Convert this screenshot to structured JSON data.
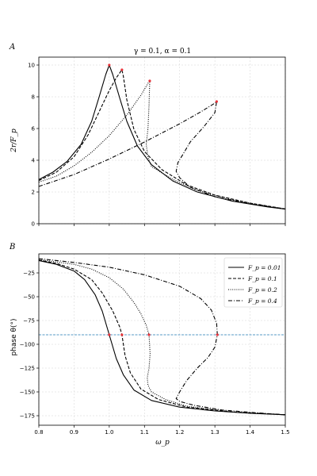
{
  "panel_a": {
    "letter": "A",
    "title": "γ = 0.1, α = 0.1",
    "ylabel": "2r/F_p"
  },
  "panel_b": {
    "letter": "B",
    "ylabel": "phase θ(°)",
    "xlabel": "ω_p"
  },
  "legend": [
    {
      "label": "F_p = 0.01",
      "dash": "solid"
    },
    {
      "label": "F_p = 0.1",
      "dash": "dashed"
    },
    {
      "label": "F_p = 0.2",
      "dash": "dotted"
    },
    {
      "label": "F_p = 0.4",
      "dash": "dashdot"
    }
  ],
  "colors": {
    "curve": "#000000",
    "marker": "#e8333a",
    "hline": "#1f77b4",
    "grid": "#d3d3d3"
  },
  "chart_data": [
    {
      "type": "line",
      "title": "γ = 0.1, α = 0.1",
      "ylabel": "2r/F_p",
      "xlim": [
        0.8,
        1.5
      ],
      "ylim": [
        0,
        10.5
      ],
      "xticks": [
        0.8,
        0.9,
        1.0,
        1.1,
        1.2,
        1.3,
        1.4,
        1.5
      ],
      "yticks": [
        0,
        2,
        4,
        6,
        8,
        10
      ],
      "grid": true,
      "series": [
        {
          "name": "F_p = 0.01",
          "style": "solid",
          "points": [
            [
              0.8,
              2.78
            ],
            [
              0.84,
              3.25
            ],
            [
              0.88,
              3.92
            ],
            [
              0.92,
              5.0
            ],
            [
              0.95,
              6.45
            ],
            [
              0.97,
              7.9
            ],
            [
              0.99,
              9.4
            ],
            [
              1.0,
              10.0
            ],
            [
              1.01,
              9.4
            ],
            [
              1.03,
              7.9
            ],
            [
              1.05,
              6.45
            ],
            [
              1.08,
              4.9
            ],
            [
              1.12,
              3.72
            ],
            [
              1.18,
              2.7
            ],
            [
              1.25,
              2.0
            ],
            [
              1.35,
              1.42
            ],
            [
              1.45,
              1.06
            ],
            [
              1.5,
              0.92
            ]
          ],
          "peak": [
            1.0,
            10.0
          ]
        },
        {
          "name": "F_p = 0.1",
          "style": "dashed",
          "points": [
            [
              0.8,
              2.72
            ],
            [
              0.85,
              3.25
            ],
            [
              0.9,
              4.22
            ],
            [
              0.94,
              5.6
            ],
            [
              0.97,
              7.0
            ],
            [
              1.0,
              8.4
            ],
            [
              1.02,
              9.2
            ],
            [
              1.036,
              9.7
            ],
            [
              1.04,
              9.3
            ],
            [
              1.05,
              7.8
            ],
            [
              1.07,
              5.95
            ],
            [
              1.1,
              4.55
            ],
            [
              1.15,
              3.4
            ],
            [
              1.22,
              2.45
            ],
            [
              1.3,
              1.8
            ],
            [
              1.4,
              1.3
            ],
            [
              1.5,
              0.93
            ]
          ],
          "peak": [
            1.036,
            9.7
          ]
        },
        {
          "name": "F_p = 0.2",
          "style": "dotted",
          "points": [
            [
              0.8,
              2.62
            ],
            [
              0.85,
              3.0
            ],
            [
              0.9,
              3.65
            ],
            [
              0.95,
              4.5
            ],
            [
              1.0,
              5.55
            ],
            [
              1.05,
              6.85
            ],
            [
              1.09,
              8.1
            ],
            [
              1.11,
              8.85
            ],
            [
              1.115,
              9.0
            ],
            [
              1.113,
              7.5
            ],
            [
              1.11,
              6.0
            ],
            [
              1.105,
              5.0
            ],
            [
              1.11,
              4.2
            ],
            [
              1.12,
              3.6
            ],
            [
              1.18,
              2.8
            ],
            [
              1.25,
              2.1
            ],
            [
              1.35,
              1.5
            ],
            [
              1.45,
              1.1
            ],
            [
              1.5,
              0.94
            ]
          ],
          "peak": [
            1.115,
            9.0
          ]
        },
        {
          "name": "F_p = 0.4",
          "style": "dashdot",
          "points": [
            [
              0.8,
              2.35
            ],
            [
              0.9,
              3.1
            ],
            [
              1.0,
              4.08
            ],
            [
              1.1,
              5.15
            ],
            [
              1.2,
              6.3
            ],
            [
              1.26,
              7.05
            ],
            [
              1.3,
              7.6
            ],
            [
              1.305,
              7.7
            ],
            [
              1.3,
              7.0
            ],
            [
              1.27,
              6.15
            ],
            [
              1.23,
              5.15
            ],
            [
              1.21,
              4.4
            ],
            [
              1.195,
              3.85
            ],
            [
              1.19,
              3.3
            ],
            [
              1.2,
              2.9
            ],
            [
              1.23,
              2.3
            ],
            [
              1.3,
              1.7
            ],
            [
              1.4,
              1.25
            ],
            [
              1.5,
              0.92
            ]
          ],
          "peak": [
            1.305,
            7.7
          ]
        }
      ]
    },
    {
      "type": "line",
      "ylabel": "phase θ(°)",
      "xlabel": "ω_p",
      "xlim": [
        0.8,
        1.5
      ],
      "ylim": [
        -185,
        -5
      ],
      "xticks": [
        0.8,
        0.9,
        1.0,
        1.1,
        1.2,
        1.3,
        1.4,
        1.5
      ],
      "yticks": [
        -25,
        -50,
        -75,
        -100,
        -125,
        -150,
        -175
      ],
      "grid": true,
      "legend_position": "top-right",
      "hline": -90,
      "series": [
        {
          "name": "F_p = 0.01",
          "style": "solid",
          "points": [
            [
              0.8,
              -12.0
            ],
            [
              0.85,
              -16.0
            ],
            [
              0.9,
              -23.0
            ],
            [
              0.93,
              -32.0
            ],
            [
              0.96,
              -48.0
            ],
            [
              0.98,
              -65.0
            ],
            [
              1.0,
              -90.0
            ],
            [
              1.02,
              -115.0
            ],
            [
              1.04,
              -132.0
            ],
            [
              1.07,
              -148.0
            ],
            [
              1.12,
              -159.0
            ],
            [
              1.2,
              -166.0
            ],
            [
              1.3,
              -170.0
            ],
            [
              1.4,
              -172.5
            ],
            [
              1.5,
              -174.0
            ]
          ],
          "marker": [
            1.0,
            -90
          ]
        },
        {
          "name": "F_p = 0.1",
          "style": "dashed",
          "points": [
            [
              0.8,
              -11.5
            ],
            [
              0.85,
              -15.0
            ],
            [
              0.9,
              -21.0
            ],
            [
              0.95,
              -32.0
            ],
            [
              0.98,
              -46.0
            ],
            [
              1.01,
              -65.0
            ],
            [
              1.03,
              -82.0
            ],
            [
              1.036,
              -90.0
            ],
            [
              1.045,
              -112.0
            ],
            [
              1.06,
              -130.0
            ],
            [
              1.09,
              -147.0
            ],
            [
              1.14,
              -158.0
            ],
            [
              1.22,
              -166.0
            ],
            [
              1.35,
              -171.0
            ],
            [
              1.5,
              -174.0
            ]
          ],
          "marker": [
            1.036,
            -90
          ]
        },
        {
          "name": "F_p = 0.2",
          "style": "dotted",
          "points": [
            [
              0.8,
              -11.0
            ],
            [
              0.9,
              -16.0
            ],
            [
              0.95,
              -21.0
            ],
            [
              1.0,
              -30.0
            ],
            [
              1.04,
              -42.0
            ],
            [
              1.07,
              -56.0
            ],
            [
              1.09,
              -68.0
            ],
            [
              1.105,
              -80.0
            ],
            [
              1.113,
              -90.0
            ],
            [
              1.116,
              -110.0
            ],
            [
              1.113,
              -125.0
            ],
            [
              1.108,
              -135.0
            ],
            [
              1.11,
              -143.0
            ],
            [
              1.12,
              -150.0
            ],
            [
              1.16,
              -158.0
            ],
            [
              1.22,
              -165.0
            ],
            [
              1.35,
              -171.0
            ],
            [
              1.5,
              -174.0
            ]
          ],
          "marker": [
            1.113,
            -90
          ]
        },
        {
          "name": "F_p = 0.4",
          "style": "dashdot",
          "points": [
            [
              0.8,
              -10.0
            ],
            [
              0.9,
              -14.0
            ],
            [
              1.0,
              -19.0
            ],
            [
              1.1,
              -27.0
            ],
            [
              1.2,
              -39.0
            ],
            [
              1.26,
              -52.0
            ],
            [
              1.29,
              -64.0
            ],
            [
              1.305,
              -78.0
            ],
            [
              1.307,
              -90.0
            ],
            [
              1.3,
              -103.0
            ],
            [
              1.28,
              -114.0
            ],
            [
              1.25,
              -125.0
            ],
            [
              1.22,
              -138.0
            ],
            [
              1.2,
              -150.0
            ],
            [
              1.19,
              -157.0
            ],
            [
              1.2,
              -160.0
            ],
            [
              1.24,
              -164.0
            ],
            [
              1.32,
              -169.0
            ],
            [
              1.42,
              -172.0
            ],
            [
              1.5,
              -174.0
            ]
          ],
          "marker": [
            1.307,
            -90
          ]
        }
      ]
    }
  ]
}
